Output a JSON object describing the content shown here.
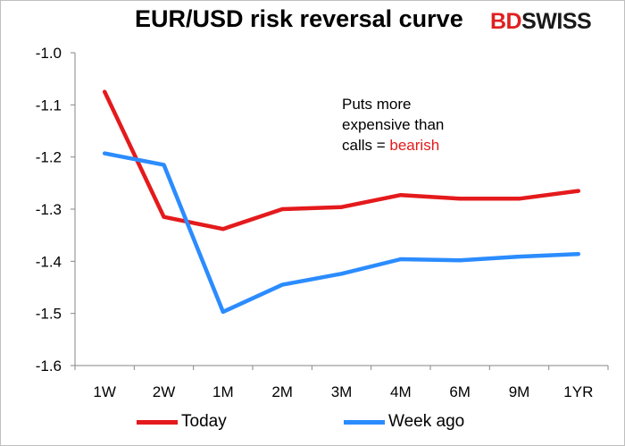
{
  "title": "EUR/USD risk reversal curve",
  "logo": {
    "part1": "BD",
    "part2": "SWISS"
  },
  "annotation": {
    "line1": "Puts more",
    "line2": "expensive than",
    "line3_prefix": "calls = ",
    "line3_highlight": "bearish"
  },
  "colors": {
    "today": "#e41a1c",
    "week_ago": "#2b8cff",
    "axis": "#868686",
    "highlight": "#e41a1c"
  },
  "chart_data": {
    "type": "line",
    "title": "EUR/USD risk reversal curve",
    "categories": [
      "1W",
      "2W",
      "1M",
      "2M",
      "3M",
      "4M",
      "6M",
      "9M",
      "1YR"
    ],
    "series": [
      {
        "name": "Today",
        "values": [
          -1.075,
          -1.315,
          -1.338,
          -1.3,
          -1.296,
          -1.273,
          -1.28,
          -1.28,
          -1.265
        ]
      },
      {
        "name": "Week ago",
        "values": [
          -1.193,
          -1.215,
          -1.497,
          -1.445,
          -1.424,
          -1.396,
          -1.398,
          -1.391,
          -1.386
        ]
      }
    ],
    "ylim": [
      -1.6,
      -1.0
    ],
    "yticks": [
      "-1.0",
      "-1.1",
      "-1.2",
      "-1.3",
      "-1.4",
      "-1.5",
      "-1.6"
    ],
    "ytick_values": [
      -1.0,
      -1.1,
      -1.2,
      -1.3,
      -1.4,
      -1.5,
      -1.6
    ],
    "grid": false,
    "legend_position": "bottom",
    "xlabel": "",
    "ylabel": ""
  }
}
